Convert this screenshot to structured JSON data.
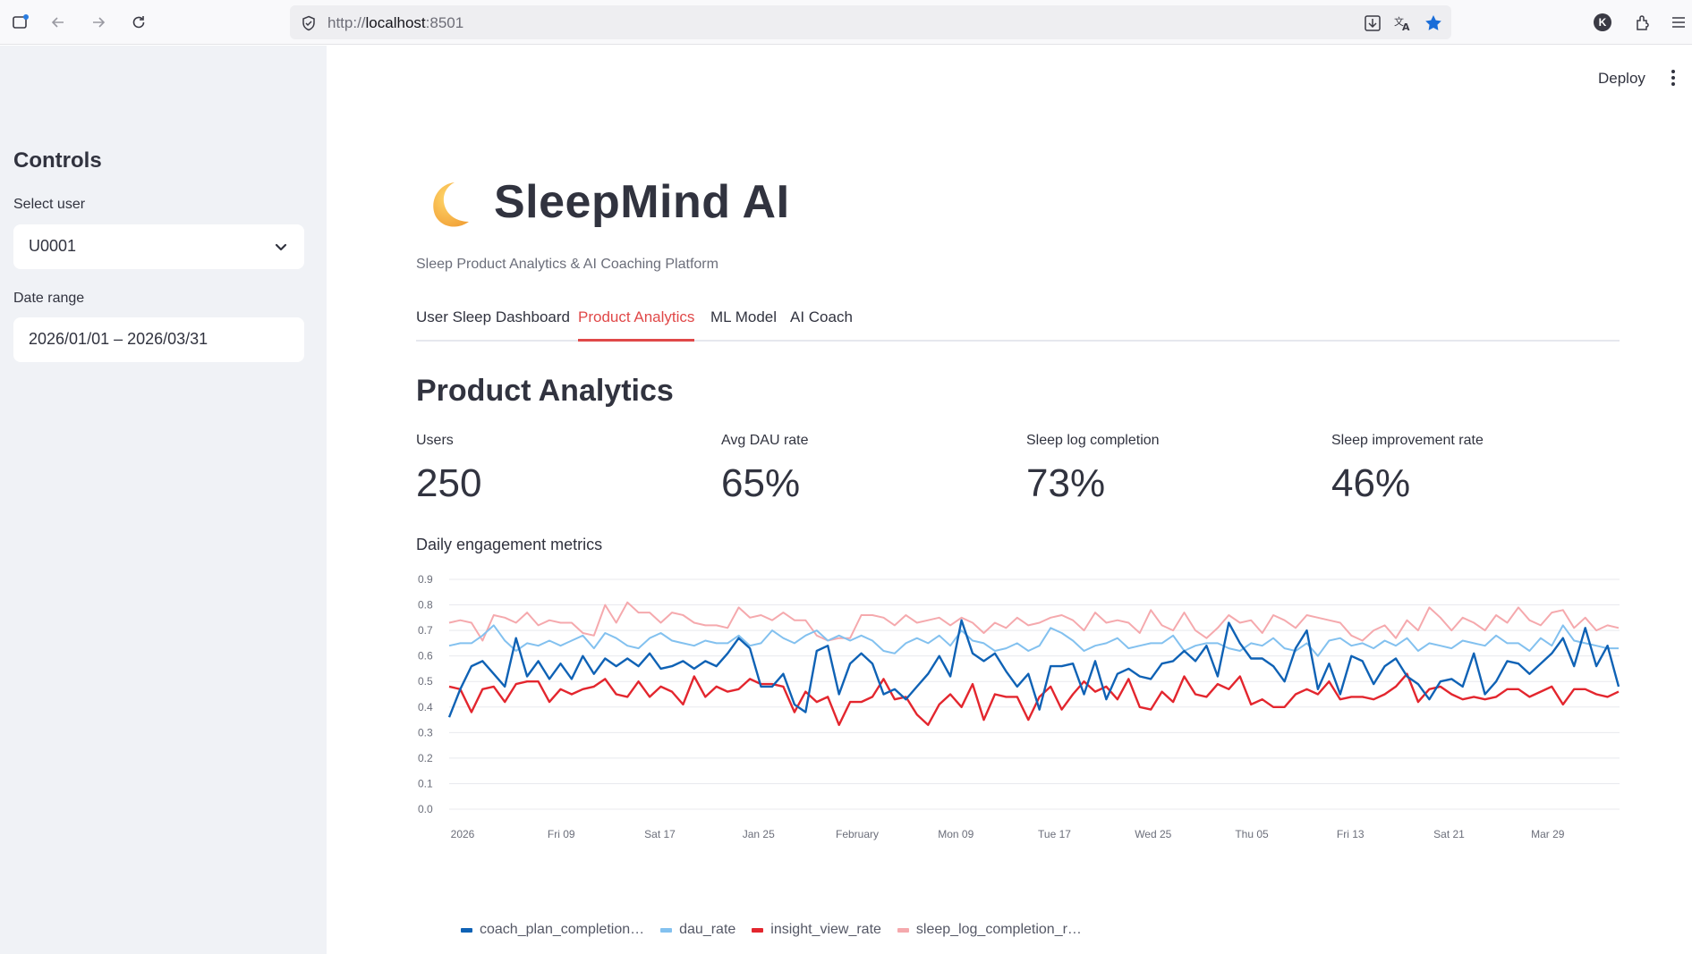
{
  "browser": {
    "url_scheme": "http://",
    "url_host": "localhost",
    "url_port": ":8501",
    "profile_initial": "K"
  },
  "sidebar": {
    "title": "Controls",
    "user_label": "Select user",
    "user_value": "U0001",
    "date_label": "Date range",
    "date_value": "2026/01/01 – 2026/03/31"
  },
  "header": {
    "deploy_label": "Deploy"
  },
  "app": {
    "icon": "crescent-moon-icon",
    "title": "SleepMind AI",
    "subtitle": "Sleep Product Analytics & AI Coaching Platform"
  },
  "tabs": [
    {
      "label": "User Sleep Dashboard",
      "active": false
    },
    {
      "label": "Product Analytics",
      "active": true
    },
    {
      "label": "ML Model",
      "active": false
    },
    {
      "label": "AI Coach",
      "active": false
    }
  ],
  "section_title": "Product Analytics",
  "metrics": [
    {
      "label": "Users",
      "value": "250"
    },
    {
      "label": "Avg DAU rate",
      "value": "65%"
    },
    {
      "label": "Sleep log completion",
      "value": "73%"
    },
    {
      "label": "Sleep improvement rate",
      "value": "46%"
    }
  ],
  "chart_title": "Daily engagement metrics",
  "colors": {
    "accent": "#e04848",
    "coach": "#0f62b5",
    "dau": "#83c1ef",
    "insight": "#e3262e",
    "sleep_log": "#f5a9ad"
  },
  "chart_data": {
    "type": "line",
    "ylim": [
      0.0,
      0.9
    ],
    "y_ticks": [
      "0.9",
      "0.8",
      "0.7",
      "0.6",
      "0.5",
      "0.4",
      "0.3",
      "0.2",
      "0.1",
      "0.0"
    ],
    "x_ticks": [
      "2026",
      "Fri 09",
      "Sat 17",
      "Jan 25",
      "February",
      "Mon 09",
      "Tue 17",
      "Wed 25",
      "Thu 05",
      "Fri 13",
      "Sat 21",
      "Mar 29"
    ],
    "series": [
      {
        "name": "coach_plan_completion…",
        "color": "#0f62b5",
        "values": [
          0.36,
          0.47,
          0.56,
          0.58,
          0.53,
          0.48,
          0.67,
          0.52,
          0.58,
          0.51,
          0.57,
          0.51,
          0.6,
          0.53,
          0.59,
          0.56,
          0.59,
          0.56,
          0.61,
          0.55,
          0.56,
          0.58,
          0.55,
          0.58,
          0.56,
          0.61,
          0.67,
          0.63,
          0.48,
          0.48,
          0.53,
          0.41,
          0.38,
          0.62,
          0.64,
          0.45,
          0.57,
          0.61,
          0.57,
          0.45,
          0.47,
          0.43,
          0.48,
          0.53,
          0.6,
          0.52,
          0.74,
          0.61,
          0.58,
          0.61,
          0.54,
          0.48,
          0.53,
          0.39,
          0.56,
          0.56,
          0.57,
          0.45,
          0.58,
          0.43,
          0.53,
          0.55,
          0.52,
          0.51,
          0.57,
          0.58,
          0.62,
          0.58,
          0.64,
          0.52,
          0.73,
          0.65,
          0.59,
          0.59,
          0.56,
          0.5,
          0.63,
          0.7,
          0.47,
          0.57,
          0.45,
          0.6,
          0.58,
          0.49,
          0.56,
          0.59,
          0.52,
          0.49,
          0.43,
          0.5,
          0.51,
          0.48,
          0.61,
          0.45,
          0.5,
          0.58,
          0.57,
          0.53,
          0.57,
          0.61,
          0.67,
          0.56,
          0.71,
          0.56,
          0.64,
          0.48
        ]
      },
      {
        "name": "dau_rate",
        "color": "#83c1ef",
        "values": [
          0.64,
          0.65,
          0.65,
          0.68,
          0.72,
          0.66,
          0.62,
          0.65,
          0.64,
          0.66,
          0.64,
          0.66,
          0.68,
          0.63,
          0.69,
          0.67,
          0.64,
          0.63,
          0.67,
          0.69,
          0.66,
          0.65,
          0.64,
          0.66,
          0.65,
          0.65,
          0.68,
          0.64,
          0.65,
          0.7,
          0.67,
          0.65,
          0.68,
          0.7,
          0.66,
          0.68,
          0.66,
          0.68,
          0.66,
          0.62,
          0.61,
          0.65,
          0.67,
          0.65,
          0.68,
          0.64,
          0.7,
          0.66,
          0.65,
          0.62,
          0.63,
          0.65,
          0.62,
          0.64,
          0.71,
          0.69,
          0.66,
          0.62,
          0.64,
          0.65,
          0.67,
          0.63,
          0.64,
          0.65,
          0.65,
          0.68,
          0.62,
          0.64,
          0.65,
          0.65,
          0.63,
          0.62,
          0.65,
          0.64,
          0.67,
          0.63,
          0.62,
          0.65,
          0.6,
          0.66,
          0.67,
          0.64,
          0.65,
          0.63,
          0.66,
          0.64,
          0.67,
          0.62,
          0.65,
          0.64,
          0.63,
          0.66,
          0.65,
          0.64,
          0.68,
          0.65,
          0.65,
          0.62,
          0.67,
          0.64,
          0.72,
          0.66,
          0.65,
          0.64,
          0.63,
          0.63
        ]
      },
      {
        "name": "insight_view_rate",
        "color": "#e3262e",
        "values": [
          0.48,
          0.47,
          0.38,
          0.47,
          0.48,
          0.42,
          0.49,
          0.5,
          0.5,
          0.42,
          0.47,
          0.45,
          0.47,
          0.48,
          0.51,
          0.45,
          0.44,
          0.5,
          0.44,
          0.48,
          0.46,
          0.41,
          0.52,
          0.44,
          0.48,
          0.46,
          0.47,
          0.51,
          0.49,
          0.49,
          0.48,
          0.38,
          0.46,
          0.42,
          0.44,
          0.33,
          0.42,
          0.42,
          0.44,
          0.51,
          0.43,
          0.44,
          0.37,
          0.33,
          0.41,
          0.45,
          0.4,
          0.49,
          0.35,
          0.45,
          0.44,
          0.44,
          0.35,
          0.44,
          0.48,
          0.39,
          0.45,
          0.5,
          0.46,
          0.48,
          0.43,
          0.51,
          0.4,
          0.39,
          0.46,
          0.42,
          0.52,
          0.45,
          0.44,
          0.49,
          0.47,
          0.52,
          0.41,
          0.43,
          0.4,
          0.4,
          0.45,
          0.47,
          0.45,
          0.5,
          0.43,
          0.44,
          0.44,
          0.43,
          0.45,
          0.48,
          0.53,
          0.42,
          0.47,
          0.48,
          0.45,
          0.43,
          0.44,
          0.43,
          0.44,
          0.47,
          0.47,
          0.44,
          0.46,
          0.48,
          0.41,
          0.47,
          0.47,
          0.45,
          0.44,
          0.46
        ]
      },
      {
        "name": "sleep_log_completion_r…",
        "color": "#f5a9ad",
        "values": [
          0.73,
          0.74,
          0.73,
          0.66,
          0.76,
          0.75,
          0.73,
          0.77,
          0.72,
          0.74,
          0.73,
          0.73,
          0.69,
          0.68,
          0.8,
          0.73,
          0.81,
          0.77,
          0.77,
          0.73,
          0.77,
          0.76,
          0.73,
          0.72,
          0.72,
          0.71,
          0.79,
          0.75,
          0.76,
          0.74,
          0.77,
          0.74,
          0.74,
          0.68,
          0.66,
          0.67,
          0.67,
          0.76,
          0.76,
          0.75,
          0.72,
          0.76,
          0.73,
          0.74,
          0.75,
          0.72,
          0.75,
          0.73,
          0.69,
          0.73,
          0.71,
          0.75,
          0.72,
          0.73,
          0.75,
          0.76,
          0.74,
          0.7,
          0.77,
          0.73,
          0.74,
          0.73,
          0.69,
          0.78,
          0.72,
          0.7,
          0.77,
          0.7,
          0.67,
          0.71,
          0.76,
          0.73,
          0.74,
          0.69,
          0.76,
          0.74,
          0.71,
          0.76,
          0.75,
          0.74,
          0.73,
          0.68,
          0.66,
          0.7,
          0.72,
          0.67,
          0.74,
          0.7,
          0.79,
          0.75,
          0.7,
          0.75,
          0.73,
          0.7,
          0.76,
          0.73,
          0.79,
          0.74,
          0.72,
          0.77,
          0.78,
          0.71,
          0.75,
          0.7,
          0.72,
          0.71
        ]
      }
    ]
  }
}
